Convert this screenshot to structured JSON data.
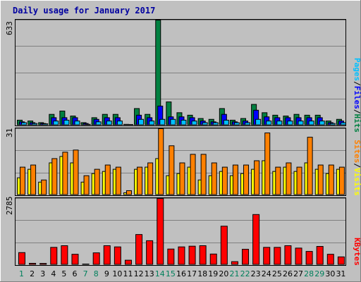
{
  "title": "Daily usage for January 2017",
  "colors": {
    "background": "#c0c0c0",
    "title": "#0000a0",
    "grid": "#808080",
    "hits": "#008040",
    "files": "#0000ff",
    "pages": "#00c0ff",
    "visits": "#ff8000",
    "sites": "#ffff00",
    "kbytes": "#ff0000",
    "weekend_label": "#00805c",
    "weekday_label": "#000000"
  },
  "chart_data": [
    {
      "type": "bar",
      "panel": "hits-files-pages",
      "max_label": "633",
      "ylim": [
        0,
        633
      ],
      "legend": {
        "pages": "Pages",
        "sep1": "/",
        "files": "Files",
        "sep2": "/",
        "hits": "Hits"
      },
      "series": [
        {
          "name": "Hits",
          "values": [
            30,
            25,
            15,
            65,
            85,
            55,
            15,
            45,
            65,
            65,
            5,
            100,
            65,
            633,
            140,
            75,
            60,
            40,
            35,
            100,
            30,
            40,
            125,
            75,
            60,
            55,
            65,
            60,
            60,
            25,
            35
          ]
        },
        {
          "name": "Files",
          "values": [
            20,
            15,
            10,
            45,
            45,
            45,
            10,
            35,
            45,
            45,
            3,
            60,
            45,
            115,
            50,
            50,
            45,
            25,
            20,
            65,
            20,
            25,
            90,
            50,
            45,
            45,
            45,
            45,
            45,
            15,
            25
          ]
        },
        {
          "name": "Pages",
          "values": [
            15,
            10,
            8,
            25,
            30,
            25,
            5,
            20,
            25,
            25,
            2,
            35,
            25,
            35,
            35,
            30,
            25,
            15,
            15,
            30,
            15,
            15,
            35,
            25,
            25,
            25,
            25,
            25,
            25,
            10,
            15
          ]
        }
      ]
    },
    {
      "type": "bar",
      "panel": "visits-sites",
      "max_label": "31",
      "ylim": [
        0,
        31
      ],
      "legend": {
        "sites": "Sites",
        "sep": "/",
        "visits": "Visits"
      },
      "series": [
        {
          "name": "Visits",
          "values": [
            13,
            14,
            7,
            17,
            20,
            21,
            9,
            12,
            14,
            13,
            2,
            13,
            15,
            31,
            23,
            15,
            19,
            19,
            15,
            13,
            14,
            14,
            16,
            29,
            13,
            15,
            13,
            27,
            14,
            14,
            13
          ]
        },
        {
          "name": "Sites",
          "values": [
            8,
            12,
            6,
            15,
            18,
            15,
            6,
            10,
            11,
            12,
            1,
            12,
            13,
            17,
            9,
            10,
            13,
            7,
            9,
            11,
            9,
            10,
            12,
            16,
            11,
            13,
            11,
            15,
            12,
            10,
            12
          ]
        }
      ]
    },
    {
      "type": "bar",
      "panel": "kbytes",
      "max_label": "2785",
      "ylim": [
        0,
        2785
      ],
      "legend": {
        "kbytes": "KBytes"
      },
      "series": [
        {
          "name": "KBytes",
          "values": [
            510,
            60,
            55,
            730,
            800,
            440,
            15,
            500,
            800,
            750,
            190,
            1270,
            1010,
            2785,
            660,
            750,
            780,
            800,
            450,
            1620,
            130,
            650,
            2110,
            730,
            730,
            800,
            700,
            560,
            770,
            440,
            330
          ]
        }
      ]
    }
  ],
  "x_labels": [
    "1",
    "2",
    "3",
    "4",
    "5",
    "6",
    "7",
    "8",
    "9",
    "10",
    "11",
    "12",
    "13",
    "14",
    "15",
    "16",
    "17",
    "18",
    "19",
    "20",
    "21",
    "22",
    "23",
    "24",
    "25",
    "26",
    "27",
    "28",
    "29",
    "30",
    "31"
  ],
  "weekend_days": [
    1,
    7,
    8,
    14,
    15,
    21,
    22,
    28,
    29
  ]
}
